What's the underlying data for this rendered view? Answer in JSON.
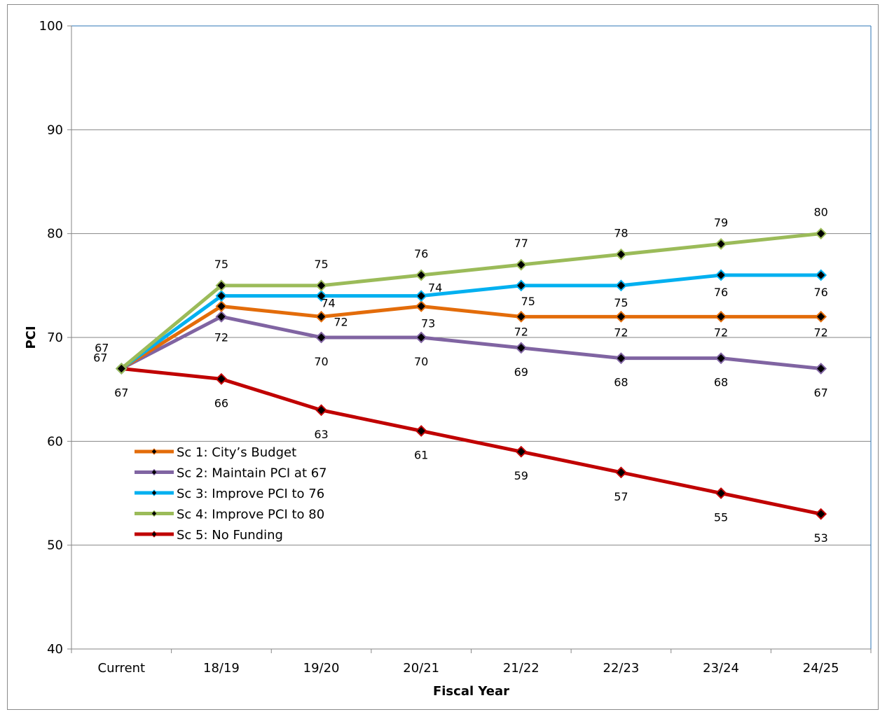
{
  "chart_data": {
    "type": "line",
    "title": "",
    "xlabel": "Fiscal Year",
    "ylabel": "PCI",
    "ylim": [
      40,
      100
    ],
    "yticks": [
      40,
      50,
      60,
      70,
      80,
      90,
      100
    ],
    "categories": [
      "Current",
      "18/19",
      "19/20",
      "20/21",
      "21/22",
      "22/23",
      "23/24",
      "24/25"
    ],
    "grid": true,
    "legend_position": "bottom-left",
    "marker_color": "#000000",
    "series": [
      {
        "name": "Sc 1: City’s Budget",
        "color": "#E36C0A",
        "values": [
          67,
          73,
          72,
          73,
          72,
          72,
          72,
          72
        ],
        "data_labels": [
          "67",
          "73",
          "72",
          "73",
          "72",
          "72",
          "72",
          "72"
        ]
      },
      {
        "name": "Sc 2: Maintain PCI at 67",
        "color": "#8064A2",
        "values": [
          67,
          72,
          70,
          70,
          69,
          68,
          68,
          67
        ],
        "data_labels": [
          "67",
          "72",
          "70",
          "70",
          "69",
          "68",
          "68",
          "67"
        ]
      },
      {
        "name": "Sc 3: Improve PCI to 76",
        "color": "#00B0F0",
        "values": [
          67,
          74,
          74,
          74,
          75,
          75,
          76,
          76
        ],
        "data_labels": [
          "67",
          "74",
          "74",
          "74",
          "75",
          "75",
          "76",
          "76"
        ]
      },
      {
        "name": "Sc 4: Improve PCI to 80",
        "color": "#9BBB59",
        "values": [
          67,
          75,
          75,
          76,
          77,
          78,
          79,
          80
        ],
        "data_labels": [
          "67",
          "75",
          "75",
          "76",
          "77",
          "78",
          "79",
          "80"
        ]
      },
      {
        "name": "Sc 5: No Funding",
        "color": "#C00000",
        "values": [
          67,
          66,
          63,
          61,
          59,
          57,
          55,
          53
        ],
        "data_labels": [
          "67",
          "66",
          "63",
          "61",
          "59",
          "57",
          "55",
          "53"
        ]
      }
    ]
  }
}
